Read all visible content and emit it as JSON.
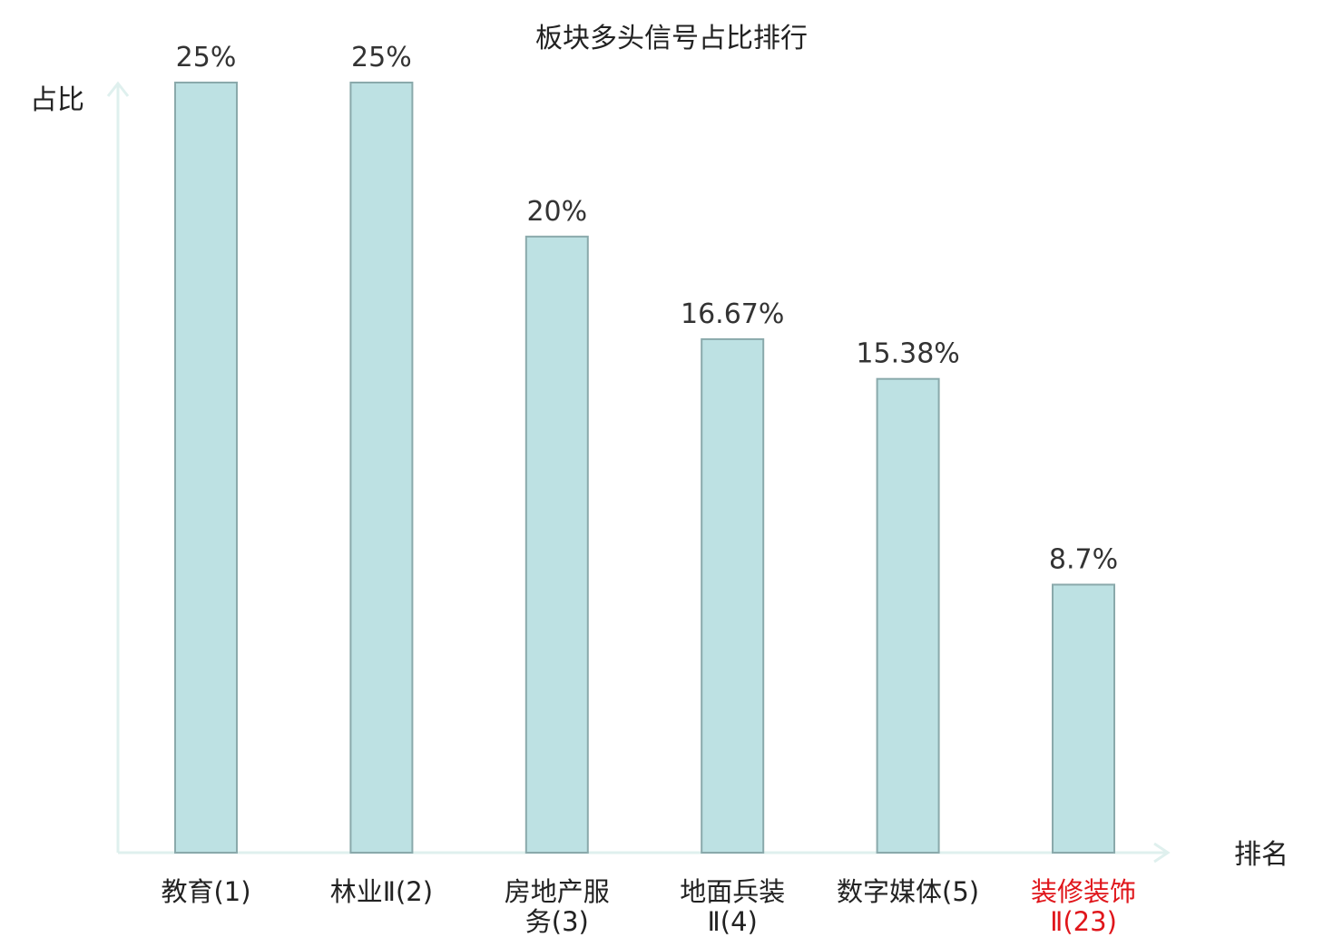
{
  "chart_data": {
    "type": "bar",
    "title": "板块多头信号占比排行",
    "xlabel": "排名",
    "ylabel": "占比",
    "categories": [
      [
        "教育(1)"
      ],
      [
        "林业Ⅱ(2)"
      ],
      [
        "房地产服",
        "务(3)"
      ],
      [
        "地面兵装",
        "Ⅱ(4)"
      ],
      [
        "数字媒体(5)"
      ],
      [
        "装修装饰",
        "Ⅱ(23)"
      ]
    ],
    "values": [
      25,
      25,
      20,
      16.67,
      15.38,
      8.7
    ],
    "value_labels": [
      "25%",
      "25%",
      "20%",
      "16.67%",
      "15.38%",
      "8.7%"
    ],
    "ylim": [
      0,
      25
    ],
    "grid": false,
    "legend": "none",
    "highlight_index": 5,
    "colors": {
      "bar_fill": "#bde1e3",
      "bar_stroke": "#8aa9ab",
      "axis": "#dff0ee",
      "text": "#222222",
      "highlight": "#e0161b"
    }
  }
}
